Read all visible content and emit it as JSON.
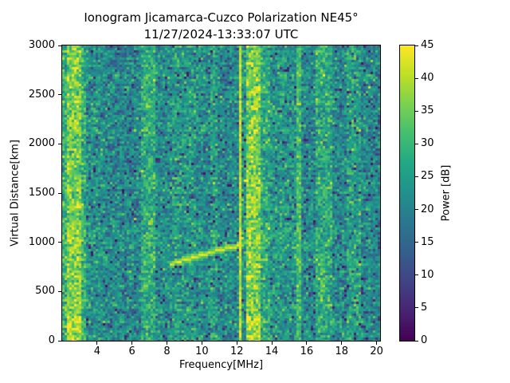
{
  "figure": {
    "title_line1": "Ionogram Jicamarca-Cuzco Polarization NE45°",
    "title_line2": "11/27/2024-13:33:07 UTC"
  },
  "chart_data": {
    "type": "heatmap",
    "title": "Ionogram Jicamarca-Cuzco Polarization NE45°",
    "subtitle": "11/27/2024-13:33:07 UTC",
    "xlabel": "Frequency[MHz]",
    "ylabel": "Virtual Distance[km]",
    "x_range": [
      2.0,
      20.2
    ],
    "y_range": [
      0,
      3000
    ],
    "x_ticks": [
      4,
      6,
      8,
      10,
      12,
      14,
      16,
      18,
      20
    ],
    "y_ticks": [
      0,
      500,
      1000,
      1500,
      2000,
      2500,
      3000
    ],
    "grid": false,
    "colorbar": {
      "label": "Power [dB]",
      "range": [
        0,
        45
      ],
      "ticks": [
        0,
        5,
        10,
        15,
        20,
        25,
        30,
        35,
        40,
        45
      ],
      "colormap": "viridis"
    },
    "background_db": {
      "mean": 22,
      "sigma": 5
    },
    "rfi_bands": [
      {
        "f0": 2.0,
        "f1": 2.3,
        "mean": 29,
        "sigma": 5
      },
      {
        "f0": 2.3,
        "f1": 3.05,
        "mean": 36,
        "sigma": 5,
        "bottom_boost": 4
      },
      {
        "f0": 3.05,
        "f1": 3.35,
        "mean": 29,
        "sigma": 5
      },
      {
        "f0": 3.35,
        "f1": 4.4,
        "mean": 23,
        "sigma": 5
      },
      {
        "f0": 4.4,
        "f1": 5.23,
        "mean": 21,
        "sigma": 5
      },
      {
        "f0": 5.23,
        "f1": 5.33,
        "mean": 40,
        "sigma": 2.5
      },
      {
        "f0": 5.33,
        "f1": 6.55,
        "mean": 21,
        "sigma": 5
      },
      {
        "f0": 6.55,
        "f1": 7.35,
        "mean": 27.5,
        "sigma": 5
      },
      {
        "f0": 7.35,
        "f1": 8.35,
        "mean": 22,
        "sigma": 5
      },
      {
        "f0": 8.35,
        "f1": 9.6,
        "mean": 24.5,
        "sigma": 5
      },
      {
        "f0": 9.6,
        "f1": 10.45,
        "mean": 22,
        "sigma": 5
      },
      {
        "f0": 10.45,
        "f1": 10.95,
        "mean": 25.5,
        "sigma": 5
      },
      {
        "f0": 10.95,
        "f1": 12.08,
        "mean": 21,
        "sigma": 5
      },
      {
        "f0": 12.08,
        "f1": 12.28,
        "mean": 41,
        "sigma": 2.5
      },
      {
        "f0": 12.28,
        "f1": 12.55,
        "mean": 24,
        "sigma": 5
      },
      {
        "f0": 12.55,
        "f1": 13.4,
        "mean": 36.5,
        "sigma": 5,
        "bottom_boost": 4
      },
      {
        "f0": 13.4,
        "f1": 13.95,
        "mean": 27,
        "sigma": 5
      },
      {
        "f0": 13.95,
        "f1": 15.35,
        "mean": 23.5,
        "sigma": 5
      },
      {
        "f0": 15.35,
        "f1": 15.65,
        "mean": 31,
        "sigma": 4
      },
      {
        "f0": 15.65,
        "f1": 16.45,
        "mean": 21.5,
        "sigma": 5
      },
      {
        "f0": 16.45,
        "f1": 17.4,
        "mean": 27.5,
        "sigma": 5
      },
      {
        "f0": 17.4,
        "f1": 18.35,
        "mean": 21.5,
        "sigma": 5
      },
      {
        "f0": 18.35,
        "f1": 19.1,
        "mean": 25.5,
        "sigma": 5
      },
      {
        "f0": 19.1,
        "f1": 20.2,
        "mean": 21,
        "sigma": 5
      }
    ],
    "echo_trace": {
      "points_mhz_km": [
        [
          8.1,
          785
        ],
        [
          9.0,
          830
        ],
        [
          10.0,
          880
        ],
        [
          11.0,
          930
        ],
        [
          12.0,
          970
        ],
        [
          13.0,
          1020
        ],
        [
          14.0,
          1075
        ],
        [
          15.2,
          1150
        ]
      ],
      "strong_db": 42,
      "faint_db": 31,
      "strong_until_mhz": 12.3,
      "faint_from_mhz": 13.35
    }
  }
}
